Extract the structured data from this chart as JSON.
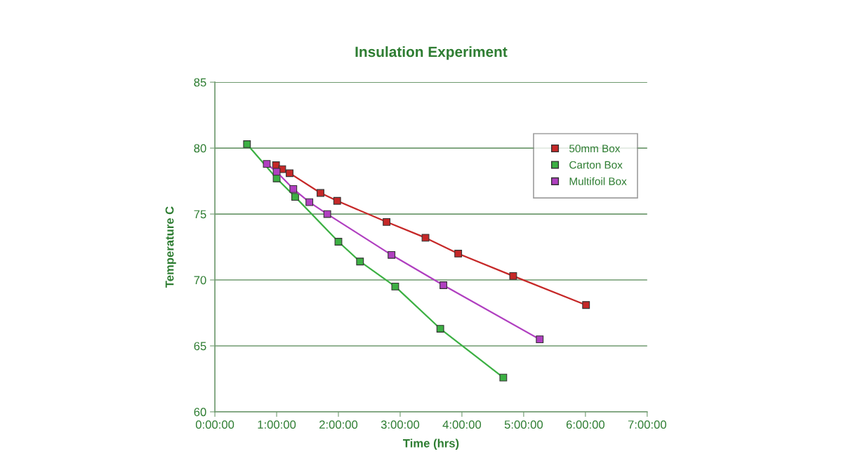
{
  "chart_data": {
    "type": "line",
    "title": "Insulation Experiment",
    "xlabel": "Time (hrs)",
    "ylabel": "Temperature C",
    "xlim": [
      0,
      7
    ],
    "xticks": [
      {
        "value": 0,
        "label": "0:00:00"
      },
      {
        "value": 1,
        "label": "1:00:00"
      },
      {
        "value": 2,
        "label": "2:00:00"
      },
      {
        "value": 3,
        "label": "3:00:00"
      },
      {
        "value": 4,
        "label": "4:00:00"
      },
      {
        "value": 5,
        "label": "5:00:00"
      },
      {
        "value": 6,
        "label": "6:00:00"
      },
      {
        "value": 7,
        "label": "7:00:00"
      }
    ],
    "ylim": [
      60,
      85
    ],
    "yticks": [
      60,
      65,
      70,
      75,
      80,
      85
    ],
    "grid": "y",
    "legend": "top right",
    "marker": "square",
    "line_style": "solid",
    "series": [
      {
        "name": "50mm Box",
        "color": "#c62828",
        "x": [
          0.99,
          1.09,
          1.21,
          1.71,
          1.98,
          2.78,
          3.41,
          3.94,
          4.83,
          6.01
        ],
        "values": [
          78.7,
          78.4,
          78.1,
          76.6,
          76.0,
          74.4,
          73.2,
          72.0,
          70.3,
          68.1
        ]
      },
      {
        "name": "Carton Box",
        "color": "#3cb043",
        "x": [
          0.52,
          1.0,
          1.3,
          2.0,
          2.35,
          2.92,
          3.65,
          4.67
        ],
        "values": [
          80.3,
          77.7,
          76.3,
          72.9,
          71.4,
          69.5,
          66.3,
          62.6
        ]
      },
      {
        "name": "Multifoil Box",
        "color": "#b03fc0",
        "x": [
          0.84,
          1.0,
          1.27,
          1.53,
          1.82,
          2.86,
          3.7,
          5.26
        ],
        "values": [
          78.8,
          78.2,
          76.9,
          75.9,
          75.0,
          71.9,
          69.6,
          65.5
        ]
      }
    ]
  }
}
